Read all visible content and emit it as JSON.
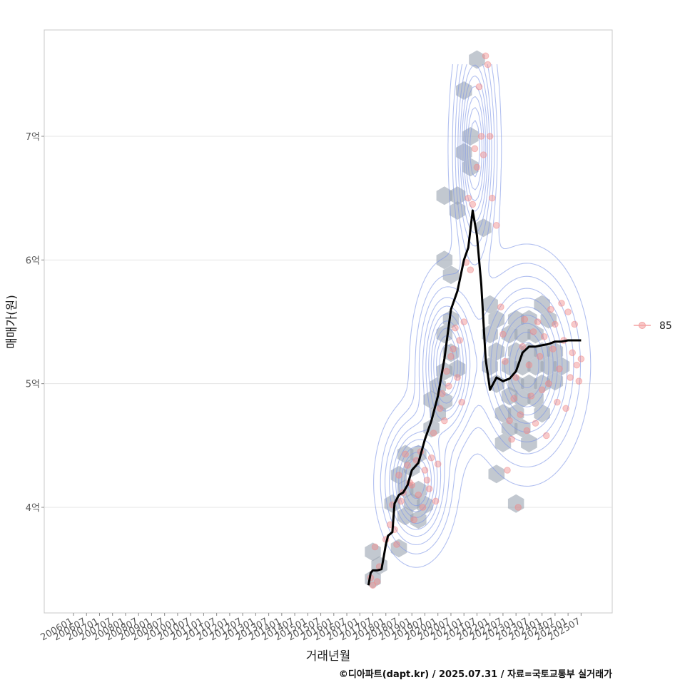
{
  "chart_data": {
    "type": "scatter",
    "xlabel": "거래년월",
    "ylabel": "매매가(원)",
    "caption": "©디아파트(dapt.kr) / 2025.07.31 / 자료=국토교통부 실거래가",
    "x_ticks": [
      "200601",
      "200607",
      "200701",
      "200707",
      "200801",
      "200807",
      "200901",
      "200907",
      "201001",
      "201007",
      "201101",
      "201107",
      "201201",
      "201207",
      "201301",
      "201307",
      "201401",
      "201407",
      "201501",
      "201507",
      "201601",
      "201607",
      "201701",
      "201707",
      "201801",
      "201807",
      "201901",
      "201907",
      "202001",
      "202007",
      "202101",
      "202107",
      "202201",
      "202207",
      "202301",
      "202307",
      "202401",
      "202407",
      "202501",
      "202507"
    ],
    "y_ticks": [
      {
        "value": 4,
        "label": "4억"
      },
      {
        "value": 5,
        "label": "5억"
      },
      {
        "value": 6,
        "label": "6억"
      },
      {
        "value": 7,
        "label": "7억"
      }
    ],
    "ylim": [
      3.2,
      7.85
    ],
    "grid": "horizontal",
    "legend": {
      "position": "right",
      "entries": [
        {
          "name": "85",
          "color": "#f4a3a3"
        }
      ]
    },
    "colors": {
      "points": "#f08a8a",
      "hexbin": "#9aa3b0",
      "contour": "#7f96e6",
      "trend": "#000000"
    },
    "series": [
      {
        "name": "85",
        "kind": "points",
        "points": [
          [
            "2017-06",
            3.43
          ],
          [
            "2017-07",
            3.37
          ],
          [
            "2017-08",
            3.68
          ],
          [
            "2017-09",
            3.4
          ],
          [
            "2017-10",
            3.52
          ],
          [
            "2018-01",
            3.74
          ],
          [
            "2018-03",
            3.86
          ],
          [
            "2018-04",
            4.02
          ],
          [
            "2018-05",
            3.82
          ],
          [
            "2018-06",
            3.7
          ],
          [
            "2018-07",
            4.26
          ],
          [
            "2018-08",
            4.05
          ],
          [
            "2018-09",
            4.12
          ],
          [
            "2018-10",
            4.43
          ],
          [
            "2018-11",
            4.34
          ],
          [
            "2018-12",
            4.2
          ],
          [
            "2019-01",
            4.18
          ],
          [
            "2019-02",
            3.9
          ],
          [
            "2019-03",
            4.38
          ],
          [
            "2019-04",
            4.1
          ],
          [
            "2019-05",
            4.45
          ],
          [
            "2019-06",
            4.0
          ],
          [
            "2019-07",
            4.3
          ],
          [
            "2019-08",
            4.22
          ],
          [
            "2019-09",
            4.15
          ],
          [
            "2019-10",
            4.4
          ],
          [
            "2019-11",
            4.6
          ],
          [
            "2019-12",
            4.05
          ],
          [
            "2020-01",
            4.35
          ],
          [
            "2020-02",
            4.8
          ],
          [
            "2020-03",
            4.92
          ],
          [
            "2020-04",
            4.7
          ],
          [
            "2020-05",
            5.1
          ],
          [
            "2020-06",
            4.98
          ],
          [
            "2020-07",
            5.22
          ],
          [
            "2020-08",
            5.28
          ],
          [
            "2020-09",
            5.45
          ],
          [
            "2020-10",
            5.05
          ],
          [
            "2020-11",
            5.35
          ],
          [
            "2020-12",
            4.85
          ],
          [
            "2021-01",
            5.5
          ],
          [
            "2021-02",
            5.98
          ],
          [
            "2021-03",
            6.5
          ],
          [
            "2021-04",
            5.92
          ],
          [
            "2021-05",
            6.45
          ],
          [
            "2021-06",
            6.9
          ],
          [
            "2021-07",
            6.75
          ],
          [
            "2021-08",
            7.4
          ],
          [
            "2021-09",
            7.0
          ],
          [
            "2021-10",
            6.85
          ],
          [
            "2021-11",
            7.65
          ],
          [
            "2021-12",
            7.58
          ],
          [
            "2022-01",
            7.0
          ],
          [
            "2022-02",
            6.5
          ],
          [
            "2022-04",
            6.28
          ],
          [
            "2022-06",
            5.62
          ],
          [
            "2022-07",
            5.4
          ],
          [
            "2022-08",
            5.18
          ],
          [
            "2022-09",
            4.3
          ],
          [
            "2022-10",
            4.7
          ],
          [
            "2022-11",
            4.55
          ],
          [
            "2022-12",
            4.88
          ],
          [
            "2023-01",
            5.05
          ],
          [
            "2023-02",
            4.0
          ],
          [
            "2023-03",
            4.75
          ],
          [
            "2023-04",
            5.3
          ],
          [
            "2023-05",
            5.52
          ],
          [
            "2023-06",
            4.62
          ],
          [
            "2023-07",
            5.15
          ],
          [
            "2023-08",
            4.9
          ],
          [
            "2023-09",
            5.42
          ],
          [
            "2023-10",
            4.68
          ],
          [
            "2023-11",
            5.5
          ],
          [
            "2023-12",
            5.22
          ],
          [
            "2024-01",
            4.95
          ],
          [
            "2024-02",
            5.38
          ],
          [
            "2024-03",
            4.58
          ],
          [
            "2024-04",
            5.0
          ],
          [
            "2024-05",
            5.6
          ],
          [
            "2024-06",
            5.28
          ],
          [
            "2024-07",
            5.48
          ],
          [
            "2024-08",
            4.85
          ],
          [
            "2024-09",
            5.12
          ],
          [
            "2024-10",
            5.65
          ],
          [
            "2024-11",
            5.35
          ],
          [
            "2024-12",
            4.8
          ],
          [
            "2025-01",
            5.58
          ],
          [
            "2025-02",
            5.05
          ],
          [
            "2025-03",
            5.25
          ],
          [
            "2025-04",
            5.48
          ],
          [
            "2025-05",
            5.15
          ],
          [
            "2025-06",
            5.02
          ],
          [
            "2025-07",
            5.2
          ]
        ]
      },
      {
        "name": "trend",
        "kind": "line",
        "points": [
          [
            "2017-05",
            3.37
          ],
          [
            "2017-06",
            3.47
          ],
          [
            "2017-07",
            3.49
          ],
          [
            "2017-09",
            3.49
          ],
          [
            "2017-11",
            3.5
          ],
          [
            "2018-01",
            3.7
          ],
          [
            "2018-02",
            3.77
          ],
          [
            "2018-04",
            3.8
          ],
          [
            "2018-05",
            4.03
          ],
          [
            "2018-07",
            4.1
          ],
          [
            "2018-09",
            4.12
          ],
          [
            "2018-11",
            4.18
          ],
          [
            "2019-01",
            4.3
          ],
          [
            "2019-04",
            4.36
          ],
          [
            "2019-07",
            4.55
          ],
          [
            "2019-10",
            4.7
          ],
          [
            "2020-01",
            4.9
          ],
          [
            "2020-04",
            5.2
          ],
          [
            "2020-07",
            5.6
          ],
          [
            "2020-10",
            5.75
          ],
          [
            "2021-01",
            6.0
          ],
          [
            "2021-03",
            6.1
          ],
          [
            "2021-05",
            6.4
          ],
          [
            "2021-07",
            6.2
          ],
          [
            "2021-09",
            5.8
          ],
          [
            "2021-11",
            5.2
          ],
          [
            "2022-01",
            4.95
          ],
          [
            "2022-04",
            5.05
          ],
          [
            "2022-07",
            5.02
          ],
          [
            "2022-10",
            5.04
          ],
          [
            "2023-01",
            5.1
          ],
          [
            "2023-04",
            5.25
          ],
          [
            "2023-07",
            5.3
          ],
          [
            "2023-10",
            5.3
          ],
          [
            "2024-01",
            5.31
          ],
          [
            "2024-04",
            5.32
          ],
          [
            "2024-07",
            5.34
          ],
          [
            "2024-10",
            5.34
          ],
          [
            "2025-01",
            5.35
          ],
          [
            "2025-04",
            5.35
          ],
          [
            "2025-07",
            5.35
          ]
        ]
      }
    ],
    "hexbins": [
      [
        "2017-07",
        3.64
      ],
      [
        "2017-07",
        3.42
      ],
      [
        "2017-10",
        3.53
      ],
      [
        "2018-04",
        4.03
      ],
      [
        "2018-07",
        3.67
      ],
      [
        "2018-07",
        4.26
      ],
      [
        "2018-10",
        4.43
      ],
      [
        "2018-10",
        4.15
      ],
      [
        "2018-10",
        3.93
      ],
      [
        "2019-01",
        4.32
      ],
      [
        "2019-01",
        4.04
      ],
      [
        "2019-04",
        4.43
      ],
      [
        "2019-04",
        4.14
      ],
      [
        "2019-04",
        3.9
      ],
      [
        "2019-07",
        4.02
      ],
      [
        "2019-10",
        4.64
      ],
      [
        "2019-10",
        4.87
      ],
      [
        "2020-01",
        4.76
      ],
      [
        "2020-01",
        4.98
      ],
      [
        "2020-04",
        5.1
      ],
      [
        "2020-04",
        5.4
      ],
      [
        "2020-04",
        4.86
      ],
      [
        "2020-07",
        5.25
      ],
      [
        "2020-07",
        5.52
      ],
      [
        "2020-10",
        5.12
      ],
      [
        "2020-04",
        6.0
      ],
      [
        "2020-07",
        5.88
      ],
      [
        "2020-04",
        6.52
      ],
      [
        "2020-10",
        6.52
      ],
      [
        "2020-10",
        6.4
      ],
      [
        "2021-01",
        6.87
      ],
      [
        "2021-04",
        6.75
      ],
      [
        "2021-04",
        7.0
      ],
      [
        "2021-01",
        7.37
      ],
      [
        "2021-07",
        7.62
      ],
      [
        "2021-10",
        6.26
      ],
      [
        "2022-01",
        5.64
      ],
      [
        "2022-01",
        5.4
      ],
      [
        "2022-01",
        5.14
      ],
      [
        "2022-04",
        5.52
      ],
      [
        "2022-04",
        5.26
      ],
      [
        "2022-04",
        5.0
      ],
      [
        "2022-07",
        4.76
      ],
      [
        "2022-07",
        4.52
      ],
      [
        "2022-04",
        4.27
      ],
      [
        "2022-10",
        4.9
      ],
      [
        "2022-10",
        4.64
      ],
      [
        "2022-10",
        5.14
      ],
      [
        "2022-10",
        5.4
      ],
      [
        "2023-01",
        5.52
      ],
      [
        "2023-01",
        5.26
      ],
      [
        "2023-01",
        5.0
      ],
      [
        "2023-01",
        4.76
      ],
      [
        "2023-04",
        5.14
      ],
      [
        "2023-04",
        5.4
      ],
      [
        "2023-04",
        4.88
      ],
      [
        "2023-04",
        4.64
      ],
      [
        "2023-07",
        5.52
      ],
      [
        "2023-07",
        5.26
      ],
      [
        "2023-07",
        5.0
      ],
      [
        "2023-07",
        4.52
      ],
      [
        "2023-10",
        5.4
      ],
      [
        "2023-10",
        5.14
      ],
      [
        "2023-10",
        4.88
      ],
      [
        "2024-01",
        5.64
      ],
      [
        "2024-01",
        5.26
      ],
      [
        "2024-01",
        5.0
      ],
      [
        "2024-01",
        4.76
      ],
      [
        "2024-04",
        5.52
      ],
      [
        "2024-04",
        5.14
      ],
      [
        "2024-07",
        5.26
      ],
      [
        "2024-07",
        5.02
      ],
      [
        "2024-10",
        5.14
      ],
      [
        "2023-01",
        4.03
      ]
    ],
    "density_peaks": [
      {
        "x": "2019-03",
        "y": 4.2,
        "sx": 8,
        "sy": 0.28
      },
      {
        "x": "2020-05",
        "y": 5.15,
        "sx": 7,
        "sy": 0.35
      },
      {
        "x": "2023-06",
        "y": 5.15,
        "sx": 12,
        "sy": 0.4
      },
      {
        "x": "2021-06",
        "y": 6.9,
        "sx": 5,
        "sy": 0.5
      }
    ]
  }
}
